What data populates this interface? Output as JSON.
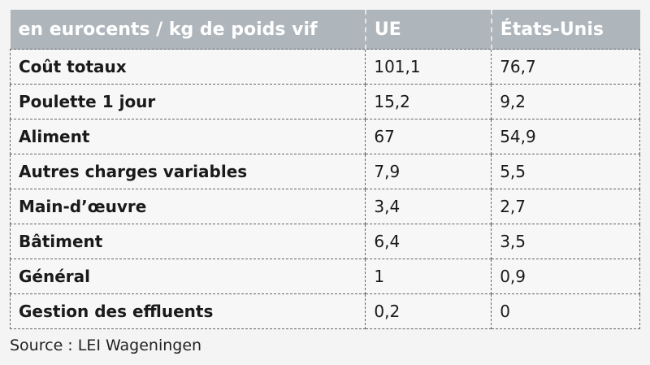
{
  "table": {
    "header": [
      "en eurocents / kg de poids vif",
      "UE",
      "États-Unis"
    ],
    "rows": [
      [
        "Coût totaux",
        "101,1",
        "76,7"
      ],
      [
        "Poulette 1 jour",
        "15,2",
        "9,2"
      ],
      [
        "Aliment",
        "67",
        "54,9"
      ],
      [
        "Autres charges variables",
        "7,9",
        "5,5"
      ],
      [
        "Main-d’œuvre",
        "3,4",
        "2,7"
      ],
      [
        "Bâtiment",
        "6,4",
        "3,5"
      ],
      [
        "Général",
        "1",
        "0,9"
      ],
      [
        "Gestion des effluents",
        "0,2",
        "0"
      ]
    ]
  },
  "source": "Source : LEI Wageningen"
}
